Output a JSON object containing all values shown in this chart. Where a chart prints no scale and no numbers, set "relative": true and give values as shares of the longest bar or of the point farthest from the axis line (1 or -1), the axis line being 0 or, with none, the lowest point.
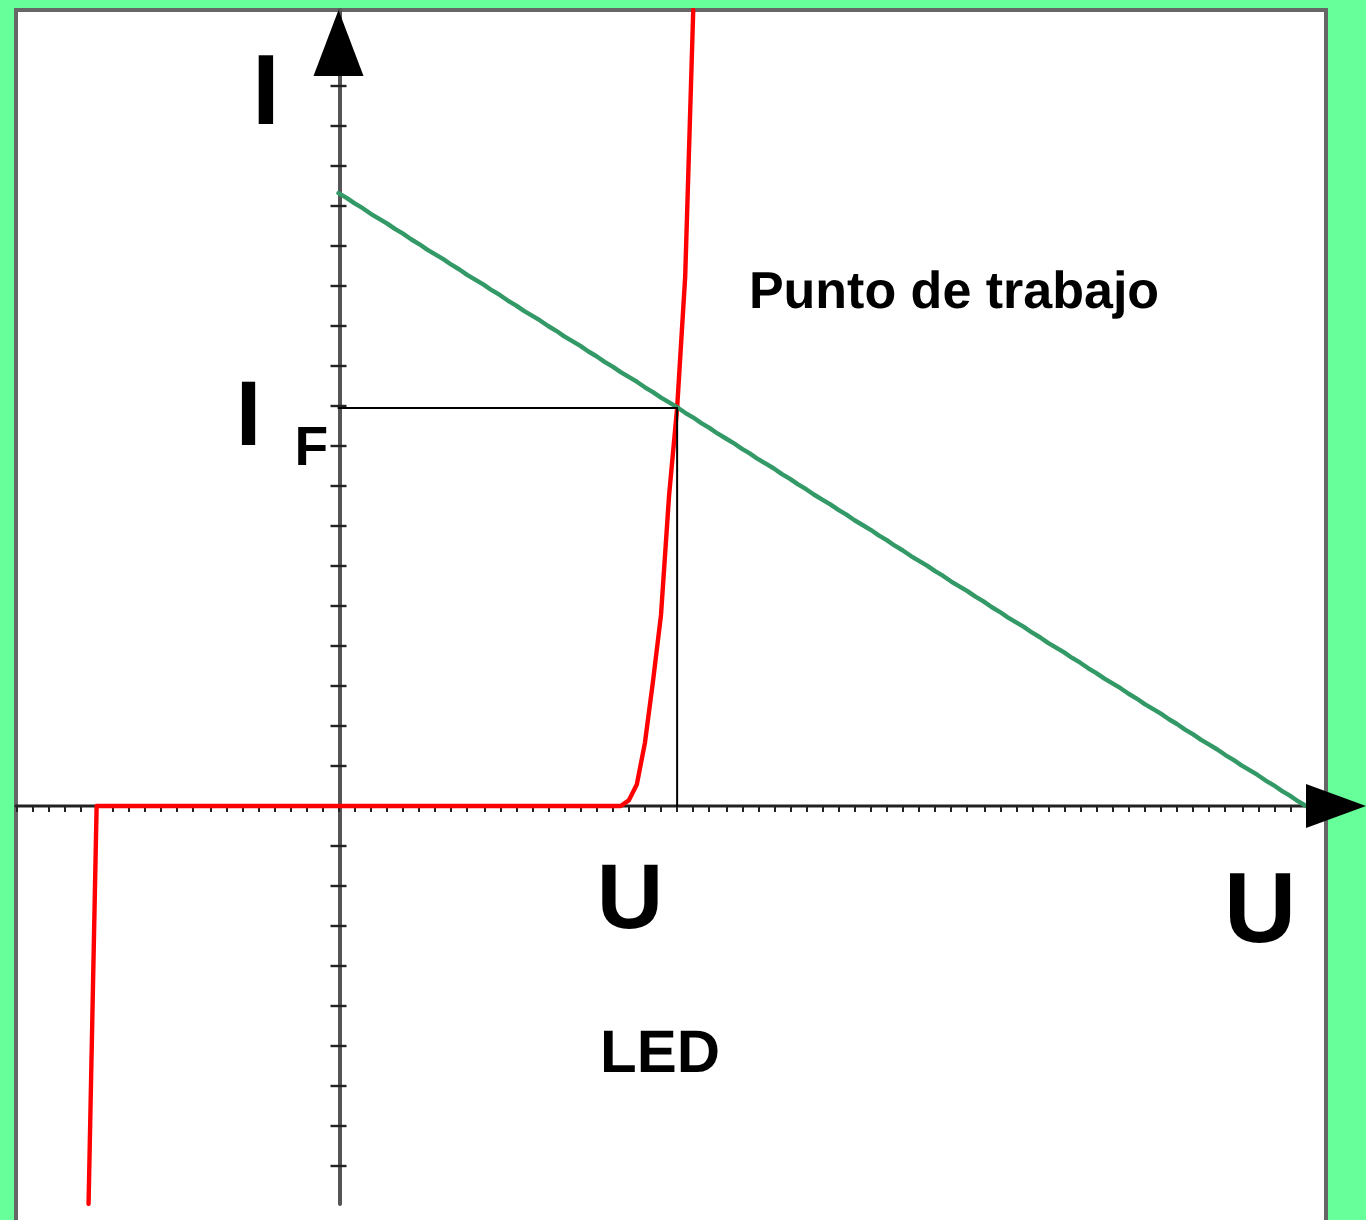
{
  "chart_data": {
    "type": "line",
    "relative": true,
    "xlabel": "U",
    "ylabel": "I",
    "marker": "none",
    "categories": [
      null,
      null,
      null,
      null,
      null,
      null,
      null,
      null,
      null,
      null,
      null,
      null,
      null,
      null,
      null,
      null,
      null,
      null,
      null,
      null,
      null,
      null,
      null,
      null,
      null,
      null,
      null,
      null,
      null,
      null,
      null,
      null,
      null,
      null,
      null,
      null,
      null,
      null,
      null,
      null,
      null,
      null,
      null,
      null,
      null,
      null,
      null,
      null,
      null,
      null,
      null,
      null,
      null,
      null,
      null,
      null,
      null,
      null,
      null,
      null,
      null,
      null,
      null,
      null,
      null,
      null,
      null,
      null,
      null,
      null,
      null,
      null,
      null,
      null,
      null,
      null,
      null,
      null,
      null,
      null,
      null,
      null,
      null,
      null,
      null,
      null,
      null,
      null,
      null,
      null,
      null,
      null,
      null,
      null,
      null,
      null,
      null,
      null,
      null,
      null,
      null,
      null,
      null,
      null,
      null,
      null,
      null,
      null,
      null,
      null,
      null,
      null,
      null,
      null,
      null,
      null,
      null,
      null,
      null,
      null,
      null,
      null,
      null,
      null,
      null,
      null,
      null,
      null,
      null,
      null,
      null,
      null,
      null,
      null,
      null,
      null,
      null,
      null,
      null,
      null,
      null,
      null,
      null,
      null,
      null,
      null,
      null,
      null,
      null,
      null,
      null,
      null,
      null,
      null,
      null,
      null,
      null,
      null,
      null,
      null,
      null
    ],
    "series": [
      {
        "color": "#ff0000",
        "values": [
          null,
          null,
          null,
          null,
          null,
          null,
          null,
          null,
          null,
          -0.5,
          0,
          0,
          0,
          0,
          0,
          0,
          0,
          0,
          0,
          0,
          0,
          0,
          0,
          0,
          0,
          0,
          0,
          0,
          0,
          0,
          0,
          0,
          0,
          0,
          0,
          0,
          0,
          0,
          0,
          0,
          0,
          0,
          0,
          0,
          0,
          0,
          0,
          0,
          0,
          0,
          0,
          0,
          0,
          0,
          0,
          0,
          0,
          0,
          0,
          0,
          0,
          0,
          0,
          0,
          0,
          0,
          0,
          0,
          0,
          0,
          0,
          0,
          0,
          0,
          0,
          0,
          0.007,
          0.027,
          0.079,
          0.156,
          0.24,
          0.39,
          0.5,
          0.665,
          1,
          null,
          null,
          null,
          null,
          null,
          null,
          null,
          null,
          null,
          null,
          null,
          null,
          null,
          null,
          null,
          null,
          null,
          null,
          null,
          null,
          null,
          null,
          null,
          null,
          null,
          null,
          null,
          null,
          null,
          null,
          null,
          null,
          null,
          null,
          null,
          null,
          null,
          null,
          null,
          null,
          null,
          null,
          null,
          null,
          null,
          null,
          null,
          null,
          null,
          null,
          null,
          null,
          null,
          null,
          null,
          null,
          null,
          null,
          null,
          null,
          null,
          null,
          null,
          null,
          null,
          null,
          null,
          null,
          null,
          null,
          null,
          null,
          null,
          null,
          null,
          null
        ]
      },
      {
        "color": "#339966",
        "values": [
          null,
          null,
          null,
          null,
          null,
          null,
          null,
          null,
          null,
          null,
          null,
          null,
          null,
          null,
          null,
          null,
          null,
          null,
          null,
          null,
          null,
          null,
          null,
          null,
          null,
          null,
          null,
          null,
          null,
          null,
          null,
          null,
          null,
          null,
          null,
          null,
          null,
          null,
          null,
          null,
          0.77,
          0.764,
          0.757,
          0.751,
          0.744,
          0.738,
          0.732,
          0.725,
          0.719,
          0.712,
          0.706,
          0.699,
          0.693,
          0.687,
          0.68,
          0.674,
          0.667,
          0.661,
          0.655,
          0.648,
          0.642,
          0.635,
          0.629,
          0.622,
          0.616,
          0.61,
          0.603,
          0.597,
          0.59,
          0.584,
          0.578,
          0.571,
          0.565,
          0.558,
          0.552,
          0.545,
          0.539,
          0.533,
          0.526,
          0.52,
          0.513,
          0.507,
          0.501,
          0.494,
          0.488,
          0.481,
          0.475,
          0.468,
          0.462,
          0.456,
          0.449,
          0.443,
          0.436,
          0.43,
          0.424,
          0.417,
          0.411,
          0.404,
          0.398,
          0.391,
          0.385,
          0.379,
          0.372,
          0.366,
          0.359,
          0.353,
          0.347,
          0.34,
          0.334,
          0.327,
          0.321,
          0.314,
          0.308,
          0.302,
          0.295,
          0.289,
          0.282,
          0.276,
          0.27,
          0.263,
          0.257,
          0.25,
          0.244,
          0.237,
          0.231,
          0.225,
          0.218,
          0.212,
          0.205,
          0.199,
          0.193,
          0.186,
          0.18,
          0.173,
          0.167,
          0.16,
          0.154,
          0.148,
          0.141,
          0.135,
          0.128,
          0.122,
          0.116,
          0.109,
          0.103,
          0.096,
          0.09,
          0.083,
          0.077,
          0.071,
          0.064,
          0.058,
          0.051,
          0.045,
          0.039,
          0.032,
          0.026,
          0.019,
          0.013,
          0.006,
          0
        ]
      },
      {
        "type": "step",
        "color": "#000000",
        "values": [
          null,
          null,
          null,
          null,
          null,
          null,
          null,
          null,
          null,
          null,
          null,
          null,
          null,
          null,
          null,
          null,
          null,
          null,
          null,
          null,
          null,
          null,
          null,
          null,
          null,
          null,
          null,
          null,
          null,
          null,
          null,
          null,
          null,
          null,
          null,
          null,
          null,
          null,
          null,
          null,
          0.5,
          0.5,
          0.5,
          0.5,
          0.5,
          0.5,
          0.5,
          0.5,
          0.5,
          0.5,
          0.5,
          0.5,
          0.5,
          0.5,
          0.5,
          0.5,
          0.5,
          0.5,
          0.5,
          0.5,
          0.5,
          0.5,
          0.5,
          0.5,
          0.5,
          0.5,
          0.5,
          0.5,
          0.5,
          0.5,
          0.5,
          0.5,
          0.5,
          0.5,
          0.5,
          0.5,
          0.5,
          0.5,
          0.5,
          0.5,
          0.5,
          0.5,
          0,
          null,
          null,
          null,
          null,
          null,
          null,
          null,
          null,
          null,
          null,
          null,
          null,
          null,
          null,
          null,
          null,
          null,
          null,
          null,
          null,
          null,
          null,
          null,
          null,
          null,
          null,
          null,
          null,
          null,
          null,
          null,
          null,
          null,
          null,
          null,
          null,
          null,
          null,
          null,
          null,
          null,
          null,
          null,
          null,
          null,
          null,
          null,
          null,
          null,
          null,
          null,
          null,
          null,
          null,
          null,
          null,
          null,
          null,
          null,
          null,
          null,
          null,
          null,
          null,
          null,
          null,
          null,
          null,
          null,
          null,
          null,
          null,
          null,
          null,
          null,
          null,
          null,
          null
        ]
      }
    ],
    "annotations": [
      "I$_{F}$",
      "U",
      "Punto de trabajo",
      "LED"
    ]
  }
}
